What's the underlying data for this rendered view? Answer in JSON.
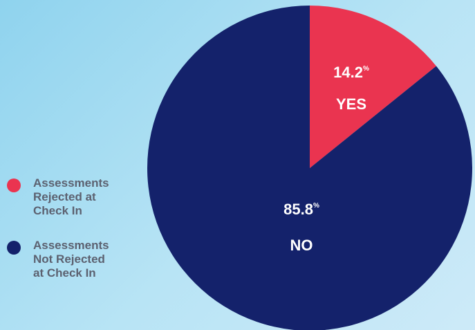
{
  "chart_data": {
    "type": "pie",
    "slices": [
      {
        "id": "yes",
        "label": "YES",
        "value": 14.2,
        "percent_text": "14.2",
        "percent_symbol": "%",
        "color": "#ea3450",
        "legend": "Assessments\nRejected at\nCheck In"
      },
      {
        "id": "no",
        "label": "NO",
        "value": 85.8,
        "percent_text": "85.8",
        "percent_symbol": "%",
        "color": "#14226b",
        "legend": "Assessments\nNot Rejected\nat Check In"
      }
    ],
    "start_angle_deg": 0,
    "direction": "clockwise"
  },
  "colors": {
    "label_text": "#ffffff",
    "legend_text": "#5c6170"
  }
}
